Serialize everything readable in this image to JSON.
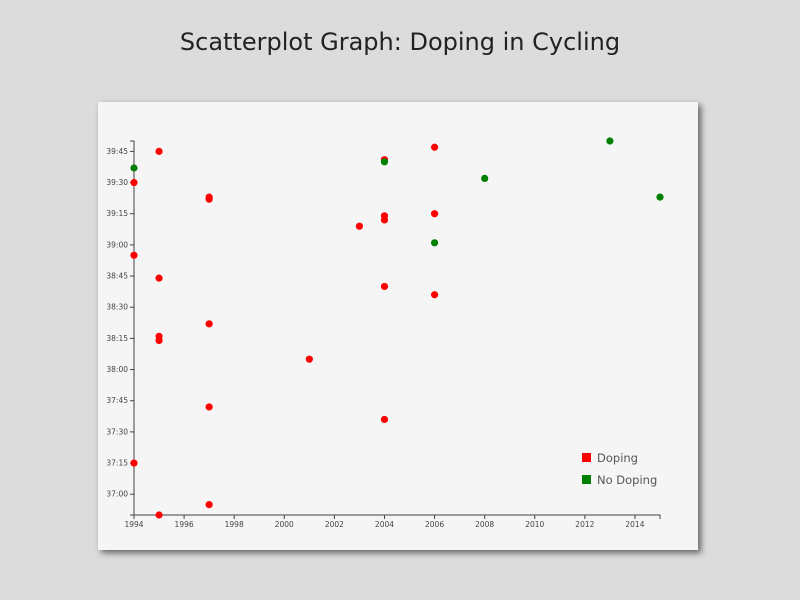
{
  "page": {
    "title": "Scatterplot Graph: Doping in Cycling"
  },
  "colors": {
    "doping": "#ff0000",
    "no_doping": "#008000"
  },
  "chart_data": {
    "type": "scatter",
    "title": "Scatterplot Graph: Doping in Cycling",
    "xlabel": "",
    "ylabel": "",
    "xlim": [
      1994,
      2015
    ],
    "ylim_seconds": [
      2210,
      2390
    ],
    "x_ticks": [
      "1994",
      "1996",
      "1998",
      "2000",
      "2002",
      "2004",
      "2006",
      "2008",
      "2010",
      "2012",
      "2014"
    ],
    "y_ticks": [
      "37:00",
      "37:15",
      "37:30",
      "37:45",
      "38:00",
      "38:15",
      "38:30",
      "38:45",
      "39:00",
      "39:15",
      "39:30",
      "39:45"
    ],
    "legend": {
      "position": "bottom-right",
      "items": [
        {
          "label": "Doping",
          "color": "#ff0000"
        },
        {
          "label": "No Doping",
          "color": "#008000"
        }
      ]
    },
    "series": [
      {
        "name": "Doping",
        "color": "#ff0000",
        "points": [
          {
            "x": 1995,
            "y": "39:45"
          },
          {
            "x": 1994,
            "y": "39:30"
          },
          {
            "x": 1997,
            "y": "39:23"
          },
          {
            "x": 1997,
            "y": "39:22"
          },
          {
            "x": 2004,
            "y": "39:41"
          },
          {
            "x": 2006,
            "y": "39:47"
          },
          {
            "x": 2004,
            "y": "39:14"
          },
          {
            "x": 2004,
            "y": "39:12"
          },
          {
            "x": 2006,
            "y": "39:15"
          },
          {
            "x": 2003,
            "y": "39:09"
          },
          {
            "x": 1994,
            "y": "38:55"
          },
          {
            "x": 1995,
            "y": "38:44"
          },
          {
            "x": 2004,
            "y": "38:40"
          },
          {
            "x": 2006,
            "y": "38:36"
          },
          {
            "x": 1997,
            "y": "38:22"
          },
          {
            "x": 1995,
            "y": "38:16"
          },
          {
            "x": 1995,
            "y": "38:14"
          },
          {
            "x": 2001,
            "y": "38:05"
          },
          {
            "x": 1997,
            "y": "37:42"
          },
          {
            "x": 2004,
            "y": "37:36"
          },
          {
            "x": 1994,
            "y": "37:15"
          },
          {
            "x": 1997,
            "y": "36:55"
          },
          {
            "x": 1995,
            "y": "36:50"
          }
        ]
      },
      {
        "name": "No Doping",
        "color": "#008000",
        "points": [
          {
            "x": 1994,
            "y": "39:37"
          },
          {
            "x": 2004,
            "y": "39:40"
          },
          {
            "x": 2013,
            "y": "39:50"
          },
          {
            "x": 2008,
            "y": "39:32"
          },
          {
            "x": 2015,
            "y": "39:23"
          },
          {
            "x": 2006,
            "y": "39:01"
          }
        ]
      }
    ]
  }
}
